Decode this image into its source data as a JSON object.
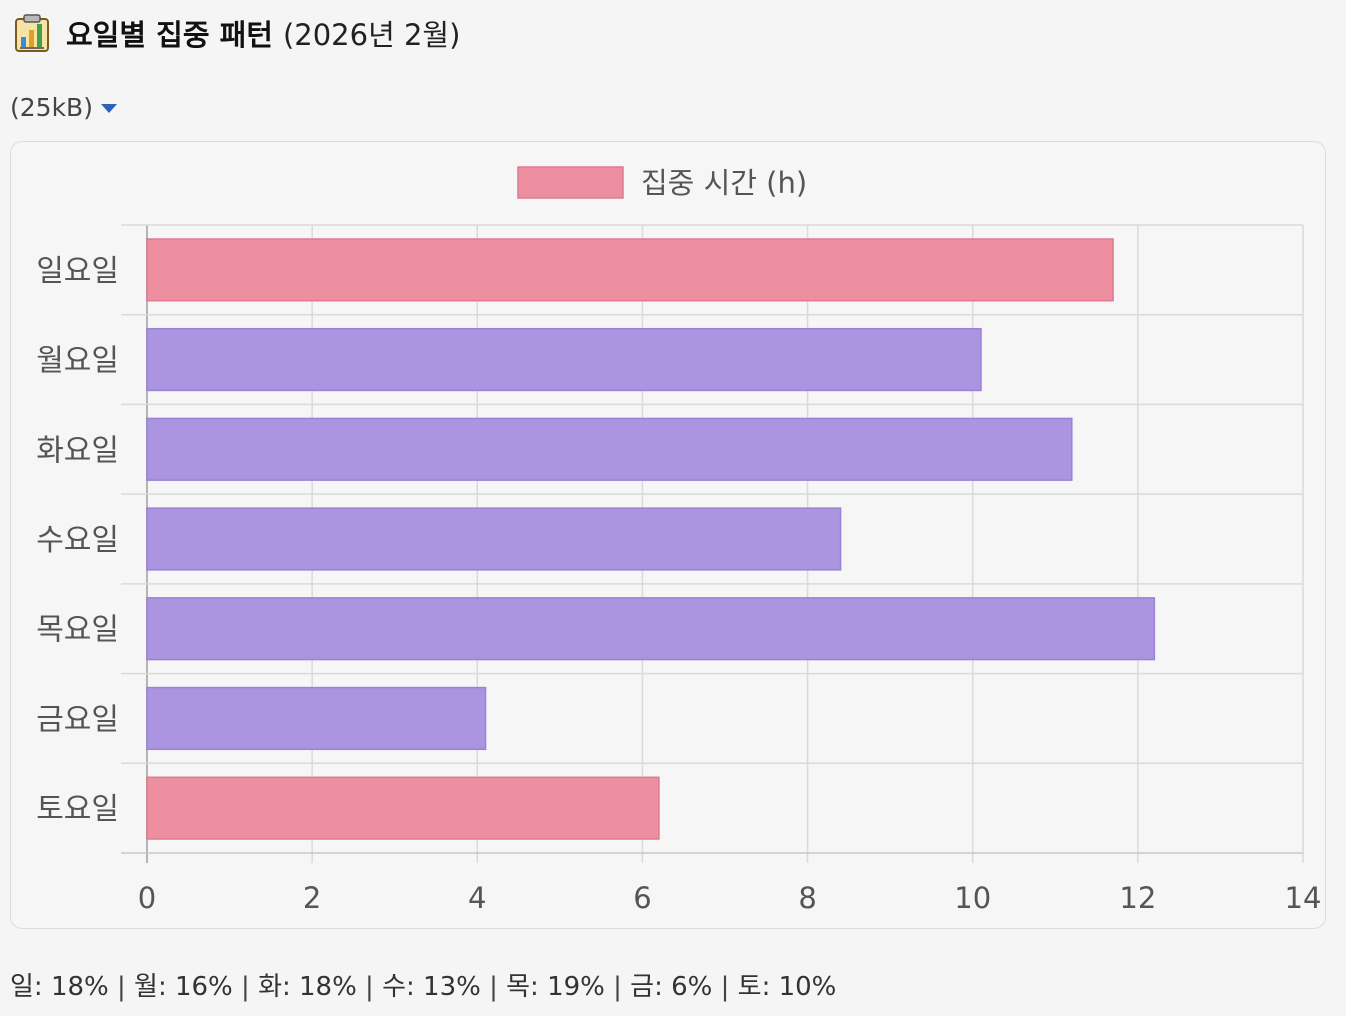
{
  "header": {
    "icon": "bar-chart-clipboard-icon",
    "title": "요일별 집중 패턴",
    "period": "(2026년 2월)"
  },
  "file": {
    "size_label": "(25kB)"
  },
  "chart_data": {
    "type": "bar",
    "orientation": "horizontal",
    "categories": [
      "일요일",
      "월요일",
      "화요일",
      "수요일",
      "목요일",
      "금요일",
      "토요일"
    ],
    "series": [
      {
        "name": "집중 시간 (h)",
        "values": [
          11.7,
          10.1,
          11.2,
          8.4,
          12.2,
          4.1,
          6.2
        ]
      }
    ],
    "xlim": [
      0,
      14
    ],
    "xticks": [
      "0",
      "2",
      "4",
      "6",
      "8",
      "10",
      "12",
      "14"
    ],
    "grid": true,
    "legend": "top-center",
    "colors": {
      "weekend": "#ec8fa0",
      "weekend_border": "#e07a90",
      "weekday": "#ab95e0",
      "weekday_border": "#9a82d6",
      "legend_swatch": "#ec8fa0"
    }
  },
  "summary": [
    {
      "text": "일: 18%"
    },
    {
      "text": "월: 16%"
    },
    {
      "text": "화: 18%"
    },
    {
      "text": "수: 13%"
    },
    {
      "text": "목: 19%"
    },
    {
      "text": "금: 6%"
    },
    {
      "text": "토: 10%"
    }
  ]
}
